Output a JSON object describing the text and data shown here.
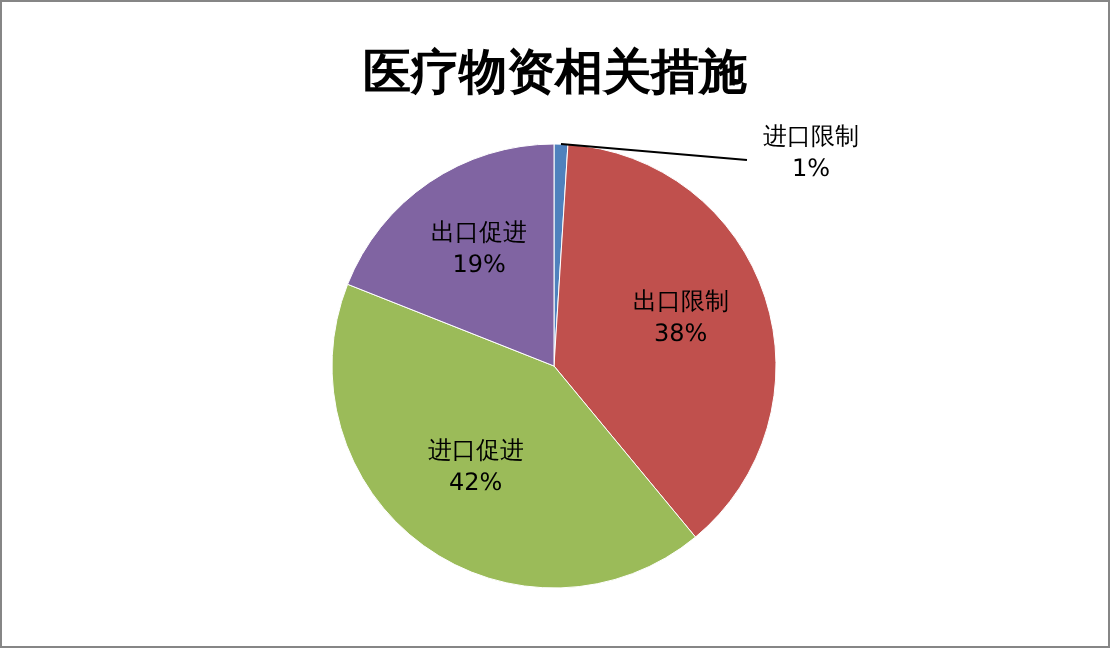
{
  "chart_data": {
    "type": "pie",
    "title": "医疗物资相关措施",
    "categories": [
      "进口限制",
      "出口限制",
      "进口促进",
      "出口促进"
    ],
    "values": [
      1,
      38,
      42,
      19
    ],
    "colors": [
      "#4f81bd",
      "#c0504d",
      "#9bbb59",
      "#8064a2"
    ],
    "value_labels": [
      "1%",
      "38%",
      "42%",
      "19%"
    ]
  }
}
